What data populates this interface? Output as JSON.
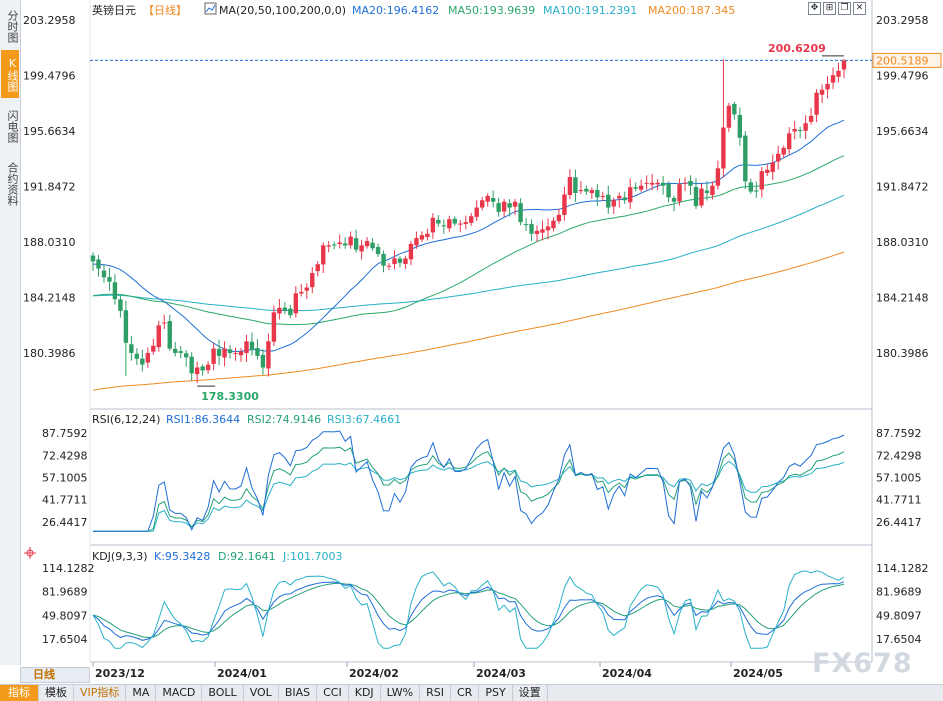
{
  "sidebar": {
    "tabs": [
      {
        "label": "分时图",
        "active": false
      },
      {
        "label": "K线图",
        "active": true
      },
      {
        "label": "闪电图",
        "active": false
      },
      {
        "label": "合约资料",
        "active": false
      }
    ]
  },
  "header": {
    "symbol": "英镑日元",
    "period_tag": "【日线】",
    "ma_params": "MA(20,50,100,200,0,0)",
    "ma20": "MA20:196.4162",
    "ma50": "MA50:193.9639",
    "ma100": "MA100:191.2391",
    "ma200": "MA200:187.345"
  },
  "window_icons": [
    "move-icon",
    "split-icon",
    "restore-icon",
    "close-icon"
  ],
  "price_panel": {
    "y_ticks": [
      "203.2958",
      "199.4796",
      "195.6634",
      "191.8472",
      "188.0310",
      "184.2148",
      "180.3986"
    ],
    "last_price_label": "200.5189",
    "high_label": "200.6209",
    "low_label": "178.3300"
  },
  "rsi_panel": {
    "title": "RSI(6,12,24)",
    "rsi1": "RSI1:86.3644",
    "rsi2": "RSI2:74.9146",
    "rsi3": "RSI3:67.4661",
    "y_ticks": [
      "87.7592",
      "72.4298",
      "57.1005",
      "41.7711",
      "26.4417"
    ]
  },
  "kdj_panel": {
    "title": "KDJ(9,3,3)",
    "k": "K:95.3428",
    "d": "D:92.1641",
    "j": "J:101.7003",
    "y_ticks": [
      "114.1282",
      "81.9689",
      "49.8097",
      "17.6504"
    ]
  },
  "x_axis": [
    "2023/12",
    "2024/01",
    "2024/02",
    "2024/03",
    "2024/04",
    "2024/05"
  ],
  "period_button": "日线",
  "toolbar": [
    "指标",
    "模板",
    "VIP指标",
    "MA",
    "MACD",
    "BOLL",
    "VOL",
    "BIAS",
    "CCI",
    "KDJ",
    "LW%",
    "RSI",
    "CR",
    "PSY",
    "设置"
  ],
  "watermark": "FX678",
  "colors": {
    "up": "#e8374b",
    "down": "#2e9e66",
    "ma20": "#1f6fd6",
    "ma50": "#2aa86a",
    "ma100": "#28b0c8",
    "ma200": "#f08a24",
    "rsi1": "#1f6fd6",
    "rsi2": "#23a07a",
    "rsi3": "#28b0c8"
  },
  "chart_data": [
    {
      "type": "candlestick",
      "title": "英镑日元 日线",
      "ylim": [
        176.5,
        205.2
      ],
      "ma_latest": {
        "MA20": 196.4162,
        "MA50": 193.9639,
        "MA100": 191.2391,
        "MA200": 187.345
      },
      "period_high": 200.6209,
      "period_low": 178.33,
      "last_close": 200.5189,
      "closes": [
        186.7,
        186.2,
        185.6,
        185.3,
        184.1,
        183.3,
        181.1,
        180.4,
        180.0,
        179.6,
        180.4,
        180.9,
        182.3,
        182.5,
        180.7,
        180.4,
        180.4,
        180.1,
        179.0,
        179.4,
        179.2,
        179.6,
        180.7,
        180.2,
        180.7,
        180.4,
        180.4,
        180.5,
        181.2,
        180.6,
        180.2,
        179.4,
        181.2,
        183.2,
        183.5,
        183.3,
        183.0,
        184.5,
        184.6,
        184.9,
        185.9,
        186.5,
        187.8,
        187.8,
        187.8,
        188.0,
        187.8,
        188.4,
        187.5,
        187.8,
        188.1,
        187.6,
        187.2,
        186.4,
        186.4,
        186.9,
        186.6,
        186.9,
        187.9,
        188.3,
        188.5,
        188.6,
        189.7,
        189.3,
        189.1,
        189.6,
        189.3,
        189.3,
        189.4,
        189.8,
        190.4,
        190.9,
        191.2,
        190.8,
        190.1,
        190.8,
        190.4,
        190.8,
        189.4,
        189.2,
        188.6,
        188.8,
        188.9,
        189.1,
        189.5,
        189.9,
        191.3,
        192.5,
        191.4,
        191.6,
        191.5,
        191.6,
        191.1,
        191.2,
        190.4,
        190.9,
        191.2,
        190.9,
        191.8,
        191.7,
        191.9,
        192.1,
        192.1,
        192.1,
        191.9,
        191.1,
        190.8,
        192.0,
        192.1,
        191.9,
        190.5,
        191.7,
        191.4,
        191.9,
        193.1,
        195.9,
        197.4,
        196.8,
        195.2,
        192.2,
        191.5,
        191.5,
        192.9,
        193.0,
        193.5,
        194.1,
        194.5,
        195.5,
        195.8,
        195.7,
        196.2,
        196.7,
        198.3,
        198.5,
        198.9,
        199.5,
        199.8,
        200.5
      ]
    },
    {
      "type": "line",
      "title": "RSI(6,12,24)",
      "ylim": [
        20,
        95
      ],
      "series": [
        {
          "name": "RSI1",
          "latest": 86.3644
        },
        {
          "name": "RSI2",
          "latest": 74.9146
        },
        {
          "name": "RSI3",
          "latest": 67.4661
        }
      ]
    },
    {
      "type": "line",
      "title": "KDJ(9,3,3)",
      "ylim": [
        5,
        125
      ],
      "series": [
        {
          "name": "K",
          "latest": 95.3428
        },
        {
          "name": "D",
          "latest": 92.1641
        },
        {
          "name": "J",
          "latest": 101.7003
        }
      ]
    }
  ]
}
